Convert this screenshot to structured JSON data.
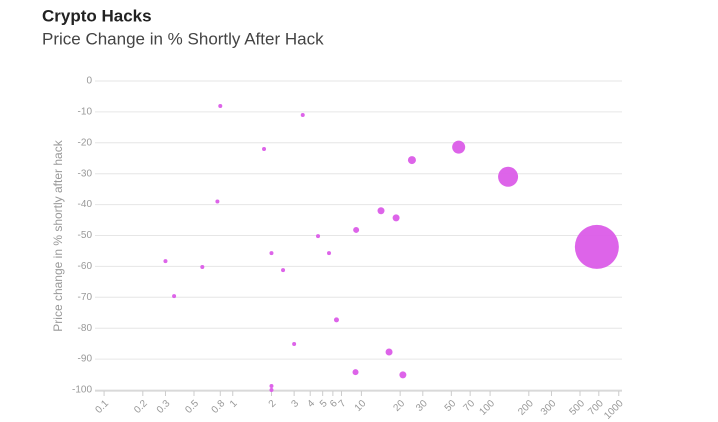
{
  "chart_data": {
    "type": "scatter",
    "title": "Crypto Hacks",
    "subtitle": "Price Change in % Shortly After Hack",
    "y_label": "Price change in % shortly after hack",
    "x_scale": "log",
    "grid": true,
    "color": "#db5ce8",
    "x": [
      0.8,
      3.5,
      1.75,
      24.7,
      57,
      138,
      676,
      0.76,
      14.2,
      18.6,
      9.1,
      4.6,
      2.0,
      5.6,
      0.3,
      0.58,
      2.46,
      0.35,
      6.4,
      3.0,
      16.4,
      9.0,
      21,
      2.0,
      2.0
    ],
    "values": [
      -8.1,
      -11,
      -22,
      -25.6,
      -21.4,
      -31,
      -53.7,
      -39,
      -42,
      -44.3,
      -48.2,
      -50.2,
      -55.7,
      -55.7,
      -58.3,
      -60.2,
      -61.2,
      -69.6,
      -77.3,
      -85.1,
      -87.7,
      -94.2,
      -95.1,
      -98.7,
      -100
    ],
    "sizes": [
      2,
      2,
      2,
      4,
      6.5,
      10,
      22,
      2,
      3.5,
      3.5,
      3,
      2,
      2,
      2,
      2,
      2,
      2,
      2,
      2.5,
      2,
      3.5,
      3,
      3.5,
      2,
      2
    ],
    "xlim": [
      0.085,
      1060
    ],
    "ylim": [
      -100,
      0
    ],
    "xticks": [
      0.1,
      0.2,
      0.3,
      0.5,
      0.8,
      1,
      2,
      3,
      4,
      5,
      6,
      7,
      10,
      20,
      30,
      50,
      70,
      100,
      200,
      300,
      500,
      700,
      1000
    ],
    "yticks": [
      0,
      -10,
      -20,
      -30,
      -40,
      -50,
      -60,
      -70,
      -80,
      -90,
      -100
    ]
  }
}
